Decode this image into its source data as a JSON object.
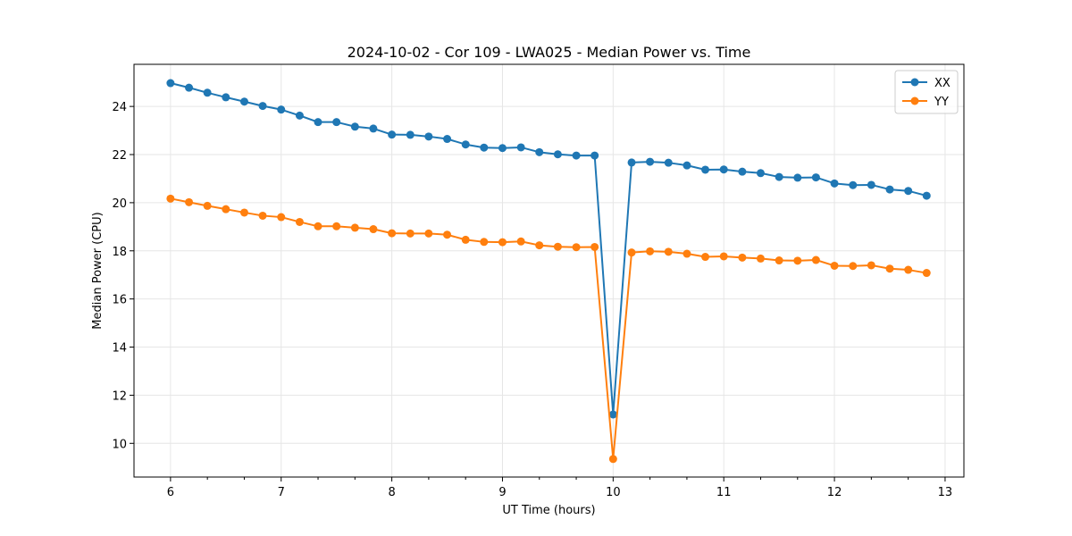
{
  "chart_data": {
    "type": "line",
    "title": "2024-10-02 - Cor 109 - LWA025 - Median Power vs. Time",
    "xlabel": "UT Time (hours)",
    "ylabel": "Median Power (CPU)",
    "xlim": [
      5.67,
      13.17
    ],
    "ylim": [
      8.6,
      25.75
    ],
    "xticks": [
      6,
      7,
      8,
      9,
      10,
      11,
      12,
      13
    ],
    "xtick_labels": [
      "6",
      "7",
      "8",
      "9",
      "10",
      "11",
      "12",
      "13"
    ],
    "yticks": [
      10,
      12,
      14,
      16,
      18,
      20,
      22,
      24
    ],
    "ytick_labels": [
      "10",
      "12",
      "14",
      "16",
      "18",
      "20",
      "22",
      "24"
    ],
    "grid": true,
    "legend_position": "top-right",
    "x": [
      6.0,
      6.167,
      6.333,
      6.5,
      6.667,
      6.833,
      7.0,
      7.167,
      7.333,
      7.5,
      7.667,
      7.833,
      8.0,
      8.167,
      8.333,
      8.5,
      8.667,
      8.833,
      9.0,
      9.167,
      9.333,
      9.5,
      9.667,
      9.833,
      10.0,
      10.167,
      10.333,
      10.5,
      10.667,
      10.833,
      11.0,
      11.167,
      11.333,
      11.5,
      11.667,
      11.833,
      12.0,
      12.167,
      12.333,
      12.5,
      12.667,
      12.833
    ],
    "series": [
      {
        "name": "XX",
        "color": "#1f77b4",
        "values": [
          24.97,
          24.78,
          24.57,
          24.38,
          24.2,
          24.02,
          23.87,
          23.62,
          23.35,
          23.35,
          23.16,
          23.08,
          22.83,
          22.82,
          22.75,
          22.65,
          22.42,
          22.29,
          22.27,
          22.3,
          22.1,
          22.01,
          21.96,
          21.96,
          11.2,
          21.67,
          21.7,
          21.66,
          21.55,
          21.37,
          21.38,
          21.29,
          21.23,
          21.07,
          21.04,
          21.05,
          20.8,
          20.73,
          20.74,
          20.55,
          20.49,
          20.29
        ]
      },
      {
        "name": "YY",
        "color": "#ff7f0e",
        "values": [
          20.17,
          20.02,
          19.87,
          19.73,
          19.59,
          19.46,
          19.4,
          19.2,
          19.02,
          19.02,
          18.96,
          18.9,
          18.73,
          18.72,
          18.72,
          18.67,
          18.46,
          18.37,
          18.36,
          18.39,
          18.23,
          18.17,
          18.15,
          18.16,
          9.35,
          17.93,
          17.98,
          17.96,
          17.88,
          17.75,
          17.77,
          17.72,
          17.68,
          17.6,
          17.59,
          17.62,
          17.38,
          17.37,
          17.4,
          17.26,
          17.21,
          17.08
        ]
      }
    ]
  }
}
